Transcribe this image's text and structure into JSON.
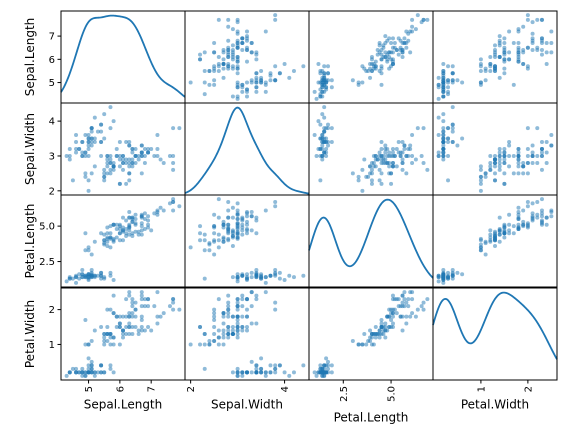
{
  "chart_data": {
    "type": "scatter",
    "title": "",
    "variables": [
      "Sepal.Length",
      "Sepal.Width",
      "Petal.Length",
      "Petal.Width"
    ],
    "diagonal": "kde",
    "grid": false,
    "point_color": "#1f77b4",
    "ranges": {
      "Sepal.Length": [
        4.3,
        7.9
      ],
      "Sepal.Width": [
        2.0,
        4.4
      ],
      "Petal.Length": [
        1.0,
        6.9
      ],
      "Petal.Width": [
        0.1,
        2.5
      ]
    },
    "ticks": {
      "Sepal.Length": {
        "x": [
          {
            "value": 5,
            "label": "5"
          },
          {
            "value": 6,
            "label": "6"
          },
          {
            "value": 7,
            "label": "7"
          }
        ],
        "y": [
          {
            "value": 5,
            "label": "5"
          },
          {
            "value": 6,
            "label": "6"
          },
          {
            "value": 7,
            "label": "7"
          }
        ]
      },
      "Sepal.Width": {
        "x": [
          {
            "value": 2,
            "label": "2"
          },
          {
            "value": 4,
            "label": "4"
          }
        ],
        "y": [
          {
            "value": 2,
            "label": "2"
          },
          {
            "value": 3,
            "label": "3"
          },
          {
            "value": 4,
            "label": "4"
          }
        ]
      },
      "Petal.Length": {
        "x": [
          {
            "value": 2.5,
            "label": "2.5"
          },
          {
            "value": 5.0,
            "label": "5.0"
          }
        ],
        "y": [
          {
            "value": 2.5,
            "label": "2.5"
          },
          {
            "value": 5.0,
            "label": "5.0"
          }
        ]
      },
      "Petal.Width": {
        "x": [
          {
            "value": 1,
            "label": "1"
          },
          {
            "value": 2,
            "label": "2"
          }
        ],
        "y": [
          {
            "value": 1,
            "label": "1"
          },
          {
            "value": 2,
            "label": "2"
          }
        ]
      }
    },
    "points": [
      [
        5.1,
        3.5,
        1.4,
        0.2
      ],
      [
        4.9,
        3.0,
        1.4,
        0.2
      ],
      [
        4.7,
        3.2,
        1.3,
        0.2
      ],
      [
        4.6,
        3.1,
        1.5,
        0.2
      ],
      [
        5.0,
        3.6,
        1.4,
        0.2
      ],
      [
        5.4,
        3.9,
        1.7,
        0.4
      ],
      [
        4.6,
        3.4,
        1.4,
        0.3
      ],
      [
        5.0,
        3.4,
        1.5,
        0.2
      ],
      [
        4.4,
        2.9,
        1.4,
        0.2
      ],
      [
        4.9,
        3.1,
        1.5,
        0.1
      ],
      [
        5.4,
        3.7,
        1.5,
        0.2
      ],
      [
        4.8,
        3.4,
        1.6,
        0.2
      ],
      [
        4.8,
        3.0,
        1.4,
        0.1
      ],
      [
        4.3,
        3.0,
        1.1,
        0.1
      ],
      [
        5.8,
        4.0,
        1.2,
        0.2
      ],
      [
        5.7,
        4.4,
        1.5,
        0.4
      ],
      [
        5.4,
        3.9,
        1.3,
        0.4
      ],
      [
        5.1,
        3.5,
        1.4,
        0.3
      ],
      [
        5.7,
        3.8,
        1.7,
        0.3
      ],
      [
        5.1,
        3.8,
        1.5,
        0.3
      ],
      [
        5.4,
        3.4,
        1.7,
        0.2
      ],
      [
        5.1,
        3.7,
        1.5,
        0.4
      ],
      [
        4.6,
        3.6,
        1.0,
        0.2
      ],
      [
        5.1,
        3.3,
        1.7,
        0.5
      ],
      [
        4.8,
        3.4,
        1.9,
        0.2
      ],
      [
        5.0,
        3.0,
        1.6,
        0.2
      ],
      [
        5.0,
        3.4,
        1.6,
        0.4
      ],
      [
        5.2,
        3.5,
        1.5,
        0.2
      ],
      [
        5.2,
        3.4,
        1.4,
        0.2
      ],
      [
        4.7,
        3.2,
        1.6,
        0.2
      ],
      [
        4.8,
        3.1,
        1.6,
        0.2
      ],
      [
        5.4,
        3.4,
        1.5,
        0.4
      ],
      [
        5.2,
        4.1,
        1.5,
        0.1
      ],
      [
        5.5,
        4.2,
        1.4,
        0.2
      ],
      [
        4.9,
        3.1,
        1.5,
        0.2
      ],
      [
        5.0,
        3.2,
        1.2,
        0.2
      ],
      [
        5.5,
        3.5,
        1.3,
        0.2
      ],
      [
        4.9,
        3.6,
        1.4,
        0.1
      ],
      [
        4.4,
        3.0,
        1.3,
        0.2
      ],
      [
        5.1,
        3.4,
        1.5,
        0.2
      ],
      [
        5.0,
        3.5,
        1.3,
        0.3
      ],
      [
        4.5,
        2.3,
        1.3,
        0.3
      ],
      [
        4.4,
        3.2,
        1.3,
        0.2
      ],
      [
        5.0,
        3.5,
        1.6,
        0.6
      ],
      [
        5.1,
        3.8,
        1.9,
        0.4
      ],
      [
        4.8,
        3.0,
        1.4,
        0.3
      ],
      [
        5.1,
        3.8,
        1.6,
        0.2
      ],
      [
        4.6,
        3.2,
        1.4,
        0.2
      ],
      [
        5.3,
        3.7,
        1.5,
        0.2
      ],
      [
        5.0,
        3.3,
        1.4,
        0.2
      ],
      [
        7.0,
        3.2,
        4.7,
        1.4
      ],
      [
        6.4,
        3.2,
        4.5,
        1.5
      ],
      [
        6.9,
        3.1,
        4.9,
        1.5
      ],
      [
        5.5,
        2.3,
        4.0,
        1.3
      ],
      [
        6.5,
        2.8,
        4.6,
        1.5
      ],
      [
        5.7,
        2.8,
        4.5,
        1.3
      ],
      [
        6.3,
        3.3,
        4.7,
        1.6
      ],
      [
        4.9,
        2.4,
        3.3,
        1.0
      ],
      [
        6.6,
        2.9,
        4.6,
        1.3
      ],
      [
        5.2,
        2.7,
        3.9,
        1.4
      ],
      [
        5.0,
        2.0,
        3.5,
        1.0
      ],
      [
        5.9,
        3.0,
        4.2,
        1.5
      ],
      [
        6.0,
        2.2,
        4.0,
        1.0
      ],
      [
        6.1,
        2.9,
        4.7,
        1.4
      ],
      [
        5.6,
        2.9,
        3.6,
        1.3
      ],
      [
        6.7,
        3.1,
        4.4,
        1.4
      ],
      [
        5.6,
        3.0,
        4.5,
        1.5
      ],
      [
        5.8,
        2.7,
        4.1,
        1.0
      ],
      [
        6.2,
        2.2,
        4.5,
        1.5
      ],
      [
        5.6,
        2.5,
        3.9,
        1.1
      ],
      [
        5.9,
        3.2,
        4.8,
        1.8
      ],
      [
        6.1,
        2.8,
        4.0,
        1.3
      ],
      [
        6.3,
        2.5,
        4.9,
        1.5
      ],
      [
        6.1,
        2.8,
        4.7,
        1.2
      ],
      [
        6.4,
        2.9,
        4.3,
        1.3
      ],
      [
        6.6,
        3.0,
        4.4,
        1.4
      ],
      [
        6.8,
        2.8,
        4.8,
        1.4
      ],
      [
        6.7,
        3.0,
        5.0,
        1.7
      ],
      [
        6.0,
        2.9,
        4.5,
        1.5
      ],
      [
        5.7,
        2.6,
        3.5,
        1.0
      ],
      [
        5.5,
        2.4,
        3.8,
        1.1
      ],
      [
        5.5,
        2.4,
        3.7,
        1.0
      ],
      [
        5.8,
        2.7,
        3.9,
        1.2
      ],
      [
        6.0,
        2.7,
        5.1,
        1.6
      ],
      [
        5.4,
        3.0,
        4.5,
        1.5
      ],
      [
        6.0,
        3.4,
        4.5,
        1.6
      ],
      [
        6.7,
        3.1,
        4.7,
        1.5
      ],
      [
        6.3,
        2.3,
        4.4,
        1.3
      ],
      [
        5.6,
        3.0,
        4.1,
        1.3
      ],
      [
        5.5,
        2.5,
        4.0,
        1.3
      ],
      [
        5.5,
        2.6,
        4.4,
        1.2
      ],
      [
        6.1,
        3.0,
        4.6,
        1.4
      ],
      [
        5.8,
        2.6,
        4.0,
        1.2
      ],
      [
        5.0,
        2.3,
        3.3,
        1.0
      ],
      [
        5.6,
        2.7,
        4.2,
        1.3
      ],
      [
        5.7,
        3.0,
        4.2,
        1.2
      ],
      [
        5.7,
        2.9,
        4.2,
        1.3
      ],
      [
        6.2,
        2.9,
        4.3,
        1.3
      ],
      [
        5.1,
        2.5,
        3.0,
        1.1
      ],
      [
        5.7,
        2.8,
        4.1,
        1.3
      ],
      [
        6.3,
        3.3,
        6.0,
        2.5
      ],
      [
        5.8,
        2.7,
        5.1,
        1.9
      ],
      [
        7.1,
        3.0,
        5.9,
        2.1
      ],
      [
        6.3,
        2.9,
        5.6,
        1.8
      ],
      [
        6.5,
        3.0,
        5.8,
        2.2
      ],
      [
        7.6,
        3.0,
        6.6,
        2.1
      ],
      [
        4.9,
        2.5,
        4.5,
        1.7
      ],
      [
        7.3,
        2.9,
        6.3,
        1.8
      ],
      [
        6.7,
        2.5,
        5.8,
        1.8
      ],
      [
        7.2,
        3.6,
        6.1,
        2.5
      ],
      [
        6.5,
        3.2,
        5.1,
        2.0
      ],
      [
        6.4,
        2.7,
        5.3,
        1.9
      ],
      [
        6.8,
        3.0,
        5.5,
        2.1
      ],
      [
        5.7,
        2.5,
        5.0,
        2.0
      ],
      [
        5.8,
        2.8,
        5.1,
        2.4
      ],
      [
        6.4,
        3.2,
        5.3,
        2.3
      ],
      [
        6.5,
        3.0,
        5.5,
        1.8
      ],
      [
        7.7,
        3.8,
        6.7,
        2.2
      ],
      [
        7.7,
        2.6,
        6.9,
        2.3
      ],
      [
        6.0,
        2.2,
        5.0,
        1.5
      ],
      [
        6.9,
        3.2,
        5.7,
        2.3
      ],
      [
        5.6,
        2.8,
        4.9,
        2.0
      ],
      [
        7.7,
        2.8,
        6.7,
        2.0
      ],
      [
        6.3,
        2.7,
        4.9,
        1.8
      ],
      [
        6.7,
        3.3,
        5.7,
        2.1
      ],
      [
        7.2,
        3.2,
        6.0,
        1.8
      ],
      [
        6.2,
        2.8,
        4.8,
        1.8
      ],
      [
        6.1,
        3.0,
        4.9,
        1.8
      ],
      [
        6.4,
        2.8,
        5.6,
        2.1
      ],
      [
        7.2,
        3.0,
        5.8,
        1.6
      ],
      [
        7.4,
        2.8,
        6.1,
        1.9
      ],
      [
        7.9,
        3.8,
        6.4,
        2.0
      ],
      [
        6.4,
        2.8,
        5.6,
        2.2
      ],
      [
        6.3,
        2.8,
        5.1,
        1.5
      ],
      [
        6.1,
        2.6,
        5.6,
        1.4
      ],
      [
        7.7,
        3.0,
        6.1,
        2.3
      ],
      [
        6.3,
        3.4,
        5.6,
        2.4
      ],
      [
        6.4,
        3.1,
        5.5,
        1.8
      ],
      [
        6.0,
        3.0,
        4.8,
        1.8
      ],
      [
        6.9,
        3.1,
        5.4,
        2.1
      ],
      [
        6.7,
        3.1,
        5.6,
        2.4
      ],
      [
        6.9,
        3.1,
        5.1,
        2.3
      ],
      [
        5.8,
        2.7,
        5.1,
        1.9
      ],
      [
        6.8,
        3.2,
        5.9,
        2.3
      ],
      [
        6.7,
        3.3,
        5.7,
        2.5
      ],
      [
        6.7,
        3.0,
        5.2,
        2.3
      ],
      [
        6.3,
        2.5,
        5.0,
        1.9
      ],
      [
        6.5,
        3.0,
        5.2,
        2.0
      ],
      [
        6.2,
        3.4,
        5.4,
        2.3
      ],
      [
        5.9,
        3.0,
        5.1,
        1.8
      ]
    ]
  }
}
